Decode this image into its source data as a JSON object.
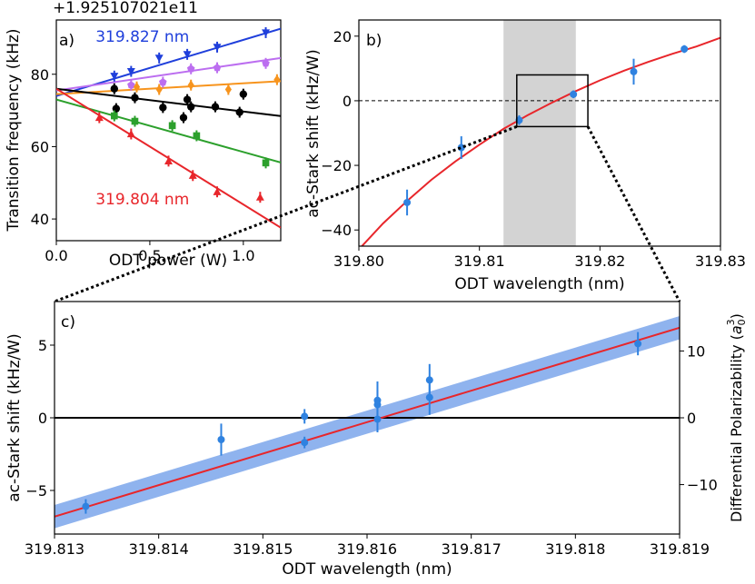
{
  "figure": {
    "background": "#ffffff"
  },
  "colors": {
    "axis": "#000000",
    "grid": "#555555",
    "shade": "#d3d3d3",
    "fit": "#e8262b",
    "band": "#8fb3ee",
    "point": "#2f82e0"
  },
  "chart_data": [
    {
      "id": "a",
      "type": "scatter",
      "panel_label": "a)",
      "offset_text": "+1.925107021e11",
      "xlabel": "ODT power (W)",
      "ylabel": "Transition frequency (kHz)",
      "xlim": [
        0,
        1.2
      ],
      "ylim": [
        34,
        95
      ],
      "xticks": [
        0.0,
        0.5,
        1.0
      ],
      "xtick_labels": [
        "0.0",
        "0.5",
        "1.0"
      ],
      "yticks": [
        40,
        60,
        80
      ],
      "ytick_labels": [
        "40",
        "60",
        "80"
      ],
      "annotations": [
        {
          "text": "319.827 nm",
          "color": "#1f3fdb",
          "x": 0.04,
          "y": 89
        },
        {
          "text": "319.804 nm",
          "color": "#e8262b",
          "x": 0.04,
          "y": 44
        }
      ],
      "series": [
        {
          "name": "blue",
          "color": "#1f3fdb",
          "marker": "triangle-down",
          "fit": [
            74.0,
            15.5
          ],
          "x": [
            0.31,
            0.4,
            0.55,
            0.7,
            0.86,
            1.12
          ],
          "y": [
            79.5,
            80.8,
            84.5,
            85.5,
            87.5,
            91.5
          ]
        },
        {
          "name": "violet",
          "color": "#bc6ef0",
          "marker": "pentagon",
          "fit": [
            75.5,
            7.5
          ],
          "x": [
            0.4,
            0.57,
            0.72,
            0.86,
            1.12
          ],
          "y": [
            77.0,
            77.8,
            81.5,
            81.8,
            83.0
          ]
        },
        {
          "name": "orange",
          "color": "#f7941d",
          "marker": "diamond",
          "fit": [
            74.5,
            3.0
          ],
          "x": [
            0.43,
            0.55,
            0.72,
            0.92,
            1.18
          ],
          "y": [
            76.5,
            75.8,
            77.0,
            75.8,
            78.5
          ]
        },
        {
          "name": "black",
          "color": "#000000",
          "marker": "circle",
          "fit": [
            76.0,
            -6.3
          ],
          "x": [
            0.31,
            0.32,
            0.42,
            0.57,
            0.68,
            0.7,
            0.72,
            0.85,
            0.98,
            1.0
          ],
          "y": [
            76.0,
            70.5,
            73.5,
            70.8,
            68.0,
            73.0,
            71.0,
            71.0,
            69.5,
            74.5
          ]
        },
        {
          "name": "green",
          "color": "#2ca02c",
          "marker": "square",
          "fit": [
            73.0,
            -14.5
          ],
          "x": [
            0.31,
            0.42,
            0.62,
            0.75,
            1.12
          ],
          "y": [
            68.5,
            67.0,
            65.8,
            63.0,
            55.5
          ]
        },
        {
          "name": "red",
          "color": "#e8262b",
          "marker": "triangle-up",
          "fit": [
            76.0,
            -32.0
          ],
          "x": [
            0.23,
            0.4,
            0.6,
            0.73,
            0.86,
            1.09
          ],
          "y": [
            68.0,
            63.5,
            56.0,
            52.0,
            47.5,
            46.0
          ]
        }
      ]
    },
    {
      "id": "b",
      "type": "scatter",
      "panel_label": "b)",
      "xlabel": "ODT wavelength (nm)",
      "ylabel": "ac-Stark shift (kHz/W)",
      "xlim": [
        319.8,
        319.83
      ],
      "ylim": [
        -45,
        25
      ],
      "xticks": [
        319.8,
        319.81,
        319.82,
        319.83
      ],
      "xtick_labels": [
        "319.80",
        "319.81",
        "319.82",
        "319.83"
      ],
      "yticks": [
        -40,
        -20,
        0,
        20
      ],
      "ytick_labels": [
        "−40",
        "−20",
        "0",
        "20"
      ],
      "shaded_region": [
        319.812,
        319.818
      ],
      "zoom_box": {
        "x": [
          319.8131,
          319.819
        ],
        "y": [
          -8.0,
          8.0
        ]
      },
      "points": [
        {
          "x": 319.804,
          "y": -31.5,
          "err": 4.0
        },
        {
          "x": 319.8085,
          "y": -14.5,
          "err": 3.5
        },
        {
          "x": 319.8133,
          "y": -6.0,
          "err": 1.5
        },
        {
          "x": 319.8178,
          "y": 2.0,
          "err": 1.2
        },
        {
          "x": 319.8228,
          "y": 9.0,
          "err": 4.0
        },
        {
          "x": 319.827,
          "y": 16.0,
          "err": 1.2
        }
      ],
      "fit_curve": [
        [
          319.8,
          -46.0
        ],
        [
          319.802,
          -38.0
        ],
        [
          319.804,
          -31.0
        ],
        [
          319.806,
          -24.5
        ],
        [
          319.808,
          -18.8
        ],
        [
          319.81,
          -13.6
        ],
        [
          319.812,
          -8.7
        ],
        [
          319.814,
          -4.5
        ],
        [
          319.816,
          -0.6
        ],
        [
          319.818,
          3.0
        ],
        [
          319.82,
          6.3
        ],
        [
          319.822,
          9.3
        ],
        [
          319.824,
          12.0
        ],
        [
          319.826,
          14.5
        ],
        [
          319.828,
          16.8
        ],
        [
          319.83,
          19.5
        ]
      ]
    },
    {
      "id": "c",
      "type": "scatter",
      "panel_label": "c)",
      "xlabel": "ODT wavelength (nm)",
      "ylabel": "ac-Stark shift (kHz/W)",
      "ylabel_right": "Differential Polarizability (",
      "ylabel_right_symbol": "a",
      "ylabel_right_sub": "0",
      "ylabel_right_sup": "3",
      "ylabel_right_end": ")",
      "xlim": [
        319.813,
        319.819
      ],
      "ylim": [
        -8.0,
        8.0
      ],
      "ylim_right": [
        -17.4,
        17.4
      ],
      "xticks": [
        319.813,
        319.814,
        319.815,
        319.816,
        319.817,
        319.818,
        319.819
      ],
      "xtick_labels": [
        "319.813",
        "319.814",
        "319.815",
        "319.816",
        "319.817",
        "319.818",
        "319.819"
      ],
      "yticks": [
        -5,
        0,
        5
      ],
      "ytick_labels": [
        "−5",
        "0",
        "5"
      ],
      "yticks_right": [
        -10,
        0,
        10
      ],
      "ytick_labels_right": [
        "−10",
        "0",
        "10"
      ],
      "fit_line": {
        "x": [
          319.813,
          319.819
        ],
        "y": [
          -6.8,
          6.2
        ]
      },
      "band": {
        "upper": [
          -6.0,
          7.0
        ],
        "lower": [
          -7.6,
          5.4
        ]
      },
      "points": [
        {
          "x": 319.8133,
          "y": -6.1,
          "err": 0.5
        },
        {
          "x": 319.8146,
          "y": -1.5,
          "err": 1.1
        },
        {
          "x": 319.8154,
          "y": 0.1,
          "err": 0.5
        },
        {
          "x": 319.8154,
          "y": -1.7,
          "err": 0.4
        },
        {
          "x": 319.8161,
          "y": 1.2,
          "err": 1.3
        },
        {
          "x": 319.8161,
          "y": 0.9,
          "err": 1.0
        },
        {
          "x": 319.8161,
          "y": -0.1,
          "err": 0.9
        },
        {
          "x": 319.8166,
          "y": 2.6,
          "err": 1.1
        },
        {
          "x": 319.8166,
          "y": 1.4,
          "err": 1.2
        },
        {
          "x": 319.8186,
          "y": 5.1,
          "err": 0.8
        }
      ]
    }
  ]
}
